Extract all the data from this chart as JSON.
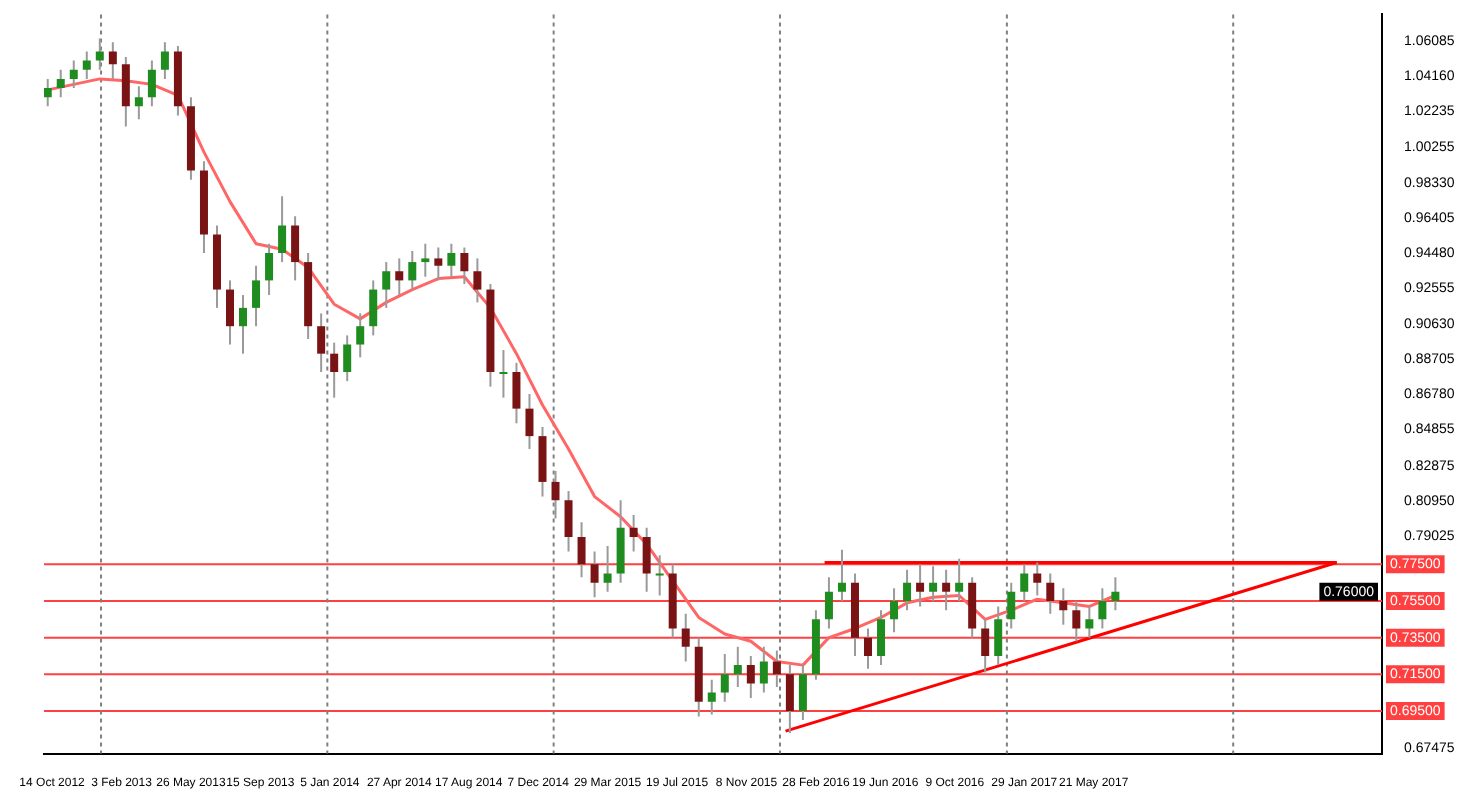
{
  "chart_data": {
    "type": "candlestick",
    "x": [
      "2012-10-07",
      "2012-10-28",
      "2012-11-18",
      "2012-12-09",
      "2012-12-30",
      "2013-01-20",
      "2013-02-10",
      "2013-03-03",
      "2013-03-24",
      "2013-04-14",
      "2013-05-05",
      "2013-05-26",
      "2013-06-16",
      "2013-07-07",
      "2013-07-28",
      "2013-08-18",
      "2013-09-08",
      "2013-09-29",
      "2013-10-20",
      "2013-11-10",
      "2013-12-01",
      "2013-12-22",
      "2014-01-12",
      "2014-02-02",
      "2014-02-23",
      "2014-03-16",
      "2014-04-06",
      "2014-04-27",
      "2014-05-18",
      "2014-06-08",
      "2014-06-29",
      "2014-07-20",
      "2014-08-10",
      "2014-08-31",
      "2014-09-21",
      "2014-10-12",
      "2014-11-02",
      "2014-11-23",
      "2014-12-14",
      "2015-01-04",
      "2015-01-25",
      "2015-02-15",
      "2015-03-08",
      "2015-03-29",
      "2015-04-19",
      "2015-05-10",
      "2015-05-31",
      "2015-06-21",
      "2015-07-12",
      "2015-08-02",
      "2015-08-23",
      "2015-09-13",
      "2015-10-04",
      "2015-10-25",
      "2015-11-15",
      "2015-12-06",
      "2015-12-27",
      "2016-01-17",
      "2016-02-07",
      "2016-02-28",
      "2016-03-20",
      "2016-04-10",
      "2016-05-01",
      "2016-05-22",
      "2016-06-12",
      "2016-07-03",
      "2016-07-24",
      "2016-08-14",
      "2016-09-04",
      "2016-09-25",
      "2016-10-16",
      "2016-11-06",
      "2016-11-27",
      "2016-12-18",
      "2017-01-08",
      "2017-01-29",
      "2017-02-19",
      "2017-03-12",
      "2017-04-02",
      "2017-04-23",
      "2017-05-14",
      "2017-06-04",
      "2017-06-25"
    ],
    "ohlc": [
      [
        1.03,
        1.04,
        1.025,
        1.035
      ],
      [
        1.035,
        1.045,
        1.03,
        1.04
      ],
      [
        1.04,
        1.05,
        1.035,
        1.045
      ],
      [
        1.045,
        1.055,
        1.04,
        1.05
      ],
      [
        1.05,
        1.062,
        1.045,
        1.055
      ],
      [
        1.055,
        1.06,
        1.04,
        1.048
      ],
      [
        1.048,
        1.052,
        1.014,
        1.025
      ],
      [
        1.025,
        1.036,
        1.018,
        1.03
      ],
      [
        1.03,
        1.05,
        1.025,
        1.045
      ],
      [
        1.045,
        1.06,
        1.04,
        1.055
      ],
      [
        1.055,
        1.058,
        1.02,
        1.025
      ],
      [
        1.025,
        1.03,
        0.985,
        0.99
      ],
      [
        0.99,
        0.995,
        0.945,
        0.955
      ],
      [
        0.955,
        0.96,
        0.915,
        0.925
      ],
      [
        0.925,
        0.93,
        0.895,
        0.905
      ],
      [
        0.905,
        0.922,
        0.89,
        0.915
      ],
      [
        0.915,
        0.938,
        0.905,
        0.93
      ],
      [
        0.93,
        0.95,
        0.922,
        0.945
      ],
      [
        0.945,
        0.976,
        0.94,
        0.96
      ],
      [
        0.96,
        0.965,
        0.93,
        0.94
      ],
      [
        0.94,
        0.945,
        0.898,
        0.905
      ],
      [
        0.905,
        0.912,
        0.88,
        0.89
      ],
      [
        0.89,
        0.896,
        0.866,
        0.88
      ],
      [
        0.88,
        0.9,
        0.875,
        0.895
      ],
      [
        0.895,
        0.912,
        0.888,
        0.905
      ],
      [
        0.905,
        0.93,
        0.9,
        0.925
      ],
      [
        0.925,
        0.94,
        0.915,
        0.935
      ],
      [
        0.935,
        0.942,
        0.922,
        0.93
      ],
      [
        0.93,
        0.946,
        0.925,
        0.94
      ],
      [
        0.94,
        0.95,
        0.932,
        0.942
      ],
      [
        0.942,
        0.948,
        0.93,
        0.938
      ],
      [
        0.938,
        0.95,
        0.932,
        0.945
      ],
      [
        0.945,
        0.948,
        0.928,
        0.935
      ],
      [
        0.935,
        0.942,
        0.918,
        0.925
      ],
      [
        0.925,
        0.928,
        0.872,
        0.88
      ],
      [
        0.88,
        0.892,
        0.866,
        0.88
      ],
      [
        0.88,
        0.885,
        0.852,
        0.86
      ],
      [
        0.86,
        0.868,
        0.838,
        0.845
      ],
      [
        0.845,
        0.85,
        0.812,
        0.82
      ],
      [
        0.82,
        0.826,
        0.8,
        0.81
      ],
      [
        0.81,
        0.815,
        0.782,
        0.79
      ],
      [
        0.79,
        0.798,
        0.768,
        0.775
      ],
      [
        0.775,
        0.782,
        0.757,
        0.765
      ],
      [
        0.765,
        0.785,
        0.76,
        0.77
      ],
      [
        0.77,
        0.81,
        0.765,
        0.795
      ],
      [
        0.795,
        0.802,
        0.782,
        0.79
      ],
      [
        0.79,
        0.795,
        0.76,
        0.77
      ],
      [
        0.77,
        0.78,
        0.758,
        0.77
      ],
      [
        0.77,
        0.775,
        0.735,
        0.74
      ],
      [
        0.74,
        0.748,
        0.722,
        0.73
      ],
      [
        0.73,
        0.735,
        0.692,
        0.7
      ],
      [
        0.7,
        0.712,
        0.693,
        0.705
      ],
      [
        0.705,
        0.726,
        0.7,
        0.715
      ],
      [
        0.715,
        0.73,
        0.708,
        0.72
      ],
      [
        0.72,
        0.725,
        0.702,
        0.71
      ],
      [
        0.71,
        0.73,
        0.705,
        0.722
      ],
      [
        0.722,
        0.728,
        0.708,
        0.715
      ],
      [
        0.715,
        0.72,
        0.683,
        0.695
      ],
      [
        0.695,
        0.72,
        0.69,
        0.715
      ],
      [
        0.715,
        0.75,
        0.712,
        0.745
      ],
      [
        0.745,
        0.768,
        0.74,
        0.76
      ],
      [
        0.76,
        0.783,
        0.755,
        0.765
      ],
      [
        0.765,
        0.77,
        0.725,
        0.735
      ],
      [
        0.735,
        0.74,
        0.718,
        0.725
      ],
      [
        0.725,
        0.75,
        0.72,
        0.745
      ],
      [
        0.745,
        0.762,
        0.738,
        0.755
      ],
      [
        0.755,
        0.772,
        0.75,
        0.765
      ],
      [
        0.765,
        0.775,
        0.752,
        0.76
      ],
      [
        0.76,
        0.774,
        0.755,
        0.765
      ],
      [
        0.765,
        0.772,
        0.75,
        0.76
      ],
      [
        0.76,
        0.778,
        0.755,
        0.765
      ],
      [
        0.765,
        0.768,
        0.735,
        0.74
      ],
      [
        0.74,
        0.745,
        0.716,
        0.725
      ],
      [
        0.725,
        0.752,
        0.72,
        0.745
      ],
      [
        0.745,
        0.765,
        0.74,
        0.76
      ],
      [
        0.76,
        0.775,
        0.755,
        0.77
      ],
      [
        0.77,
        0.776,
        0.758,
        0.765
      ],
      [
        0.765,
        0.77,
        0.748,
        0.755
      ],
      [
        0.755,
        0.762,
        0.742,
        0.75
      ],
      [
        0.75,
        0.755,
        0.733,
        0.74
      ],
      [
        0.74,
        0.752,
        0.735,
        0.745
      ],
      [
        0.745,
        0.762,
        0.74,
        0.755
      ],
      [
        0.755,
        0.768,
        0.75,
        0.76
      ]
    ],
    "series": [
      {
        "type": "line",
        "color": "#ff6666",
        "x": [
          "2012-10-07",
          "2012-11-18",
          "2012-12-30",
          "2013-02-10",
          "2013-03-24",
          "2013-05-05",
          "2013-06-16",
          "2013-07-28",
          "2013-09-08",
          "2013-10-20",
          "2013-12-01",
          "2014-01-12",
          "2014-02-23",
          "2014-04-06",
          "2014-05-18",
          "2014-06-29",
          "2014-08-10",
          "2014-09-21",
          "2014-11-02",
          "2014-12-14",
          "2015-01-25",
          "2015-03-08",
          "2015-04-19",
          "2015-05-31",
          "2015-07-12",
          "2015-08-23",
          "2015-10-04",
          "2015-11-15",
          "2015-12-27",
          "2016-02-07",
          "2016-03-20",
          "2016-05-01",
          "2016-06-12",
          "2016-07-24",
          "2016-09-04",
          "2016-10-16",
          "2016-11-27",
          "2017-01-08",
          "2017-02-19",
          "2017-04-02",
          "2017-05-14",
          "2017-06-25"
        ],
        "values": [
          1.034,
          1.037,
          1.04,
          1.039,
          1.037,
          1.031,
          1.0,
          0.973,
          0.95,
          0.947,
          0.937,
          0.917,
          0.909,
          0.918,
          0.925,
          0.931,
          0.932,
          0.915,
          0.89,
          0.862,
          0.838,
          0.812,
          0.801,
          0.786,
          0.766,
          0.746,
          0.737,
          0.733,
          0.722,
          0.72,
          0.735,
          0.74,
          0.746,
          0.754,
          0.757,
          0.758,
          0.745,
          0.75,
          0.756,
          0.754,
          0.752,
          0.758
        ]
      },
      {
        "type": "line",
        "color": "#ff0000",
        "x": [
          "2016-01-10",
          "2018-06-17"
        ],
        "values": [
          0.684,
          0.776
        ]
      },
      {
        "type": "line",
        "color": "#ff0000",
        "x": [
          "2016-03-13",
          "2018-06-17"
        ],
        "values": [
          0.776,
          0.776
        ]
      }
    ],
    "xlim": [
      "2012-10-01",
      "2018-08-29"
    ],
    "xticks": [
      {
        "value": "2012-10-14",
        "label": "14 Oct 2012"
      },
      {
        "value": "2013-02-03",
        "label": "3 Feb 2013"
      },
      {
        "value": "2013-05-26",
        "label": "26 May 2013"
      },
      {
        "value": "2013-09-15",
        "label": "15 Sep 2013"
      },
      {
        "value": "2014-01-05",
        "label": "5 Jan 2014"
      },
      {
        "value": "2014-04-27",
        "label": "27 Apr 2014"
      },
      {
        "value": "2014-08-17",
        "label": "17 Aug 2014"
      },
      {
        "value": "2014-12-07",
        "label": "7 Dec 2014"
      },
      {
        "value": "2015-03-29",
        "label": "29 Mar 2015"
      },
      {
        "value": "2015-07-19",
        "label": "19 Jul 2015"
      },
      {
        "value": "2015-11-08",
        "label": "8 Nov 2015"
      },
      {
        "value": "2016-02-28",
        "label": "28 Feb 2016"
      },
      {
        "value": "2016-06-19",
        "label": "19 Jun 2016"
      },
      {
        "value": "2016-10-09",
        "label": "9 Oct 2016"
      },
      {
        "value": "2017-01-29",
        "label": "29 Jan 2017"
      },
      {
        "value": "2017-05-21",
        "label": "21 May 2017"
      }
    ],
    "ylim": [
      0.6717,
      1.0752
    ],
    "yticks": [
      {
        "value": 1.06085,
        "label": "1.06085"
      },
      {
        "value": 1.0416,
        "label": "1.04160"
      },
      {
        "value": 1.02235,
        "label": "1.02235"
      },
      {
        "value": 1.00255,
        "label": "1.00255"
      },
      {
        "value": 0.9833,
        "label": "0.98330"
      },
      {
        "value": 0.96405,
        "label": "0.96405"
      },
      {
        "value": 0.9448,
        "label": "0.94480"
      },
      {
        "value": 0.92555,
        "label": "0.92555"
      },
      {
        "value": 0.9063,
        "label": "0.90630"
      },
      {
        "value": 0.88705,
        "label": "0.88705"
      },
      {
        "value": 0.8678,
        "label": "0.86780"
      },
      {
        "value": 0.84855,
        "label": "0.84855"
      },
      {
        "value": 0.82875,
        "label": "0.82875"
      },
      {
        "value": 0.8095,
        "label": "0.80950"
      },
      {
        "value": 0.79025,
        "label": "0.79025"
      },
      {
        "value": 0.67475,
        "label": "0.67475"
      }
    ],
    "ref_lines": [
      {
        "axis": "y",
        "value": 0.775,
        "label": "0.77500",
        "color": "#ff4040"
      },
      {
        "axis": "y",
        "value": 0.755,
        "label": "0.75500",
        "color": "#ff4040"
      },
      {
        "axis": "y",
        "value": 0.735,
        "label": "0.73500",
        "color": "#ff4040"
      },
      {
        "axis": "y",
        "value": 0.715,
        "label": "0.71500",
        "color": "#ff4040"
      },
      {
        "axis": "y",
        "value": 0.695,
        "label": "0.69500",
        "color": "#ff4040"
      },
      {
        "axis": "x",
        "value": "2013-01-01",
        "color": "#808080",
        "line_style": "dotted"
      },
      {
        "axis": "x",
        "value": "2014-01-01",
        "color": "#808080",
        "line_style": "dotted"
      },
      {
        "axis": "x",
        "value": "2015-01-01",
        "color": "#808080",
        "line_style": "dotted"
      },
      {
        "axis": "x",
        "value": "2016-01-01",
        "color": "#808080",
        "line_style": "dotted"
      },
      {
        "axis": "x",
        "value": "2017-01-01",
        "color": "#808080",
        "line_style": "dotted"
      },
      {
        "axis": "x",
        "value": "2018-01-01",
        "color": "#808080",
        "line_style": "dotted"
      }
    ],
    "annotations": [
      {
        "text": "0.76000",
        "y": 0.76
      }
    ],
    "legend": false
  }
}
